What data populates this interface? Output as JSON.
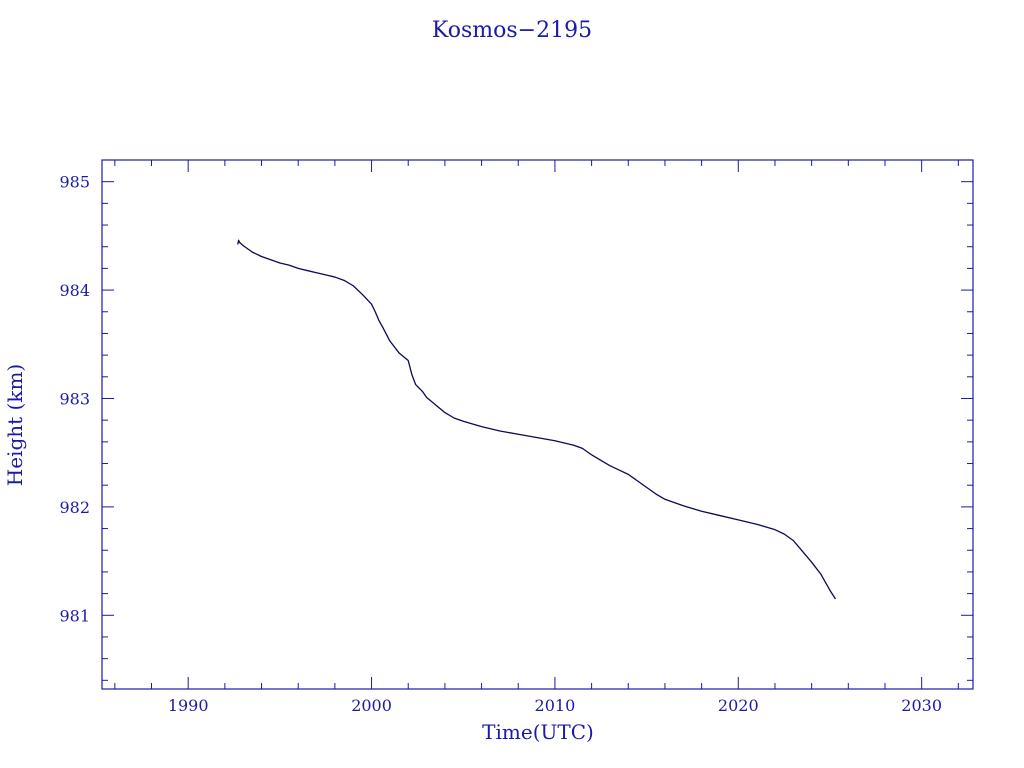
{
  "colors": {
    "axis": "#1a1aa6",
    "text": "#1a1aa6",
    "line": "#0a0a55",
    "background": "#ffffff"
  },
  "chart_data": {
    "type": "line",
    "title": "Kosmos−2195",
    "xlabel": "Time(UTC)",
    "ylabel": "Height (km)",
    "xlim": [
      1985.3,
      2032.8
    ],
    "ylim": [
      980.32,
      985.2
    ],
    "xticks": [
      1990,
      2000,
      2010,
      2020,
      2030
    ],
    "xtick_labels": [
      "1990",
      "2000",
      "2010",
      "2020",
      "2030"
    ],
    "yticks": [
      981,
      982,
      983,
      984,
      985
    ],
    "ytick_labels": [
      "981",
      "982",
      "983",
      "984",
      "985"
    ],
    "grid": false,
    "legend": "none",
    "series": [
      {
        "x": [
          1992.7,
          1992.75,
          1992.8,
          1993.0,
          1993.5,
          1994.0,
          1994.5,
          1995.0,
          1995.5,
          1996.0,
          1996.5,
          1997.0,
          1997.5,
          1998.0,
          1998.5,
          1999.0,
          1999.5,
          2000.0,
          2000.2,
          2000.4,
          2000.6,
          2001.0,
          2001.5,
          2002.0,
          2002.2,
          2002.4,
          2002.8,
          2003.0,
          2003.5,
          2004.0,
          2004.5,
          2005.0,
          2006.0,
          2007.0,
          2008.0,
          2009.0,
          2010.0,
          2011.0,
          2011.5,
          2012.0,
          2012.5,
          2013.0,
          2013.5,
          2014.0,
          2014.5,
          2015.0,
          2015.5,
          2016.0,
          2017.0,
          2018.0,
          2019.0,
          2020.0,
          2021.0,
          2022.0,
          2022.5,
          2023.0,
          2023.5,
          2024.0,
          2024.5,
          2025.0,
          2025.3
        ],
        "y": [
          984.42,
          984.46,
          984.44,
          984.41,
          984.35,
          984.31,
          984.28,
          984.25,
          984.23,
          984.2,
          984.18,
          984.16,
          984.14,
          984.12,
          984.09,
          984.04,
          983.96,
          983.87,
          983.8,
          983.72,
          983.66,
          983.53,
          983.42,
          983.35,
          983.22,
          983.13,
          983.06,
          983.01,
          982.94,
          982.87,
          982.82,
          982.79,
          982.74,
          982.7,
          982.67,
          982.64,
          982.61,
          982.57,
          982.54,
          982.48,
          982.43,
          982.38,
          982.34,
          982.3,
          982.24,
          982.18,
          982.12,
          982.07,
          982.01,
          981.96,
          981.92,
          981.88,
          981.84,
          981.79,
          981.75,
          981.69,
          981.59,
          981.49,
          981.38,
          981.23,
          981.15
        ]
      }
    ]
  }
}
